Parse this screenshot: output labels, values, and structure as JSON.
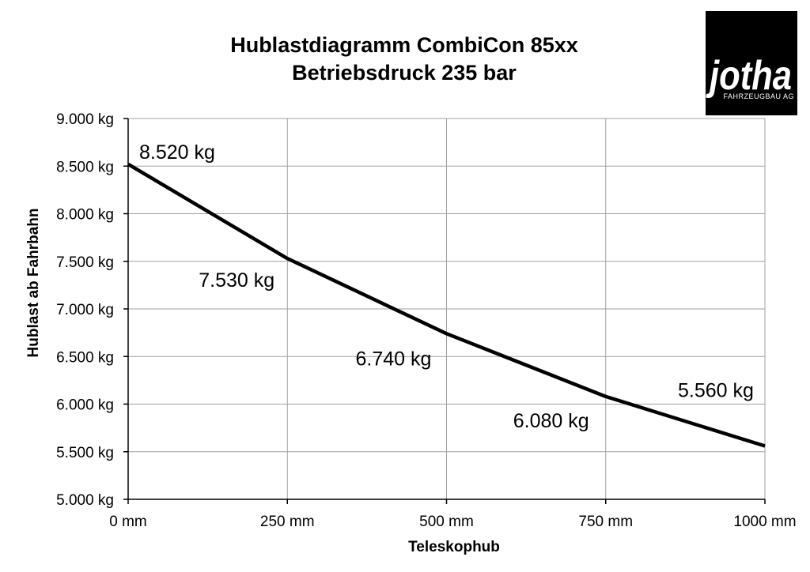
{
  "logo": {
    "name": "jotha",
    "tagline": "FAHRZEUGBAU AG"
  },
  "chart_data": {
    "type": "line",
    "title": "Hublastdiagramm CombiCon 85xx",
    "subtitle": "Betriebsdruck 235 bar",
    "xlabel": "Teleskophub",
    "ylabel": "Hublast ab Fahrbahn",
    "x": [
      0,
      250,
      500,
      750,
      1000
    ],
    "x_tick_labels": [
      "0 mm",
      "250 mm",
      "500 mm",
      "750 mm",
      "1000 mm"
    ],
    "xlim": [
      0,
      1000
    ],
    "y_ticks": [
      5000,
      5500,
      6000,
      6500,
      7000,
      7500,
      8000,
      8500,
      9000
    ],
    "y_tick_labels": [
      "5.000 kg",
      "5.500 kg",
      "6.000 kg",
      "6.500 kg",
      "7.000 kg",
      "7.500 kg",
      "8.000 kg",
      "8.500 kg",
      "9.000 kg"
    ],
    "ylim": [
      5000,
      9000
    ],
    "series": [
      {
        "values": [
          8520,
          7530,
          6740,
          6080,
          5560
        ]
      }
    ],
    "data_labels": [
      "8.520 kg",
      "7.530 kg",
      "6.740 kg",
      "6.080 kg",
      "5.560 kg"
    ],
    "grid": true,
    "line_color": "#000000",
    "grid_color": "#a0a0a0"
  }
}
